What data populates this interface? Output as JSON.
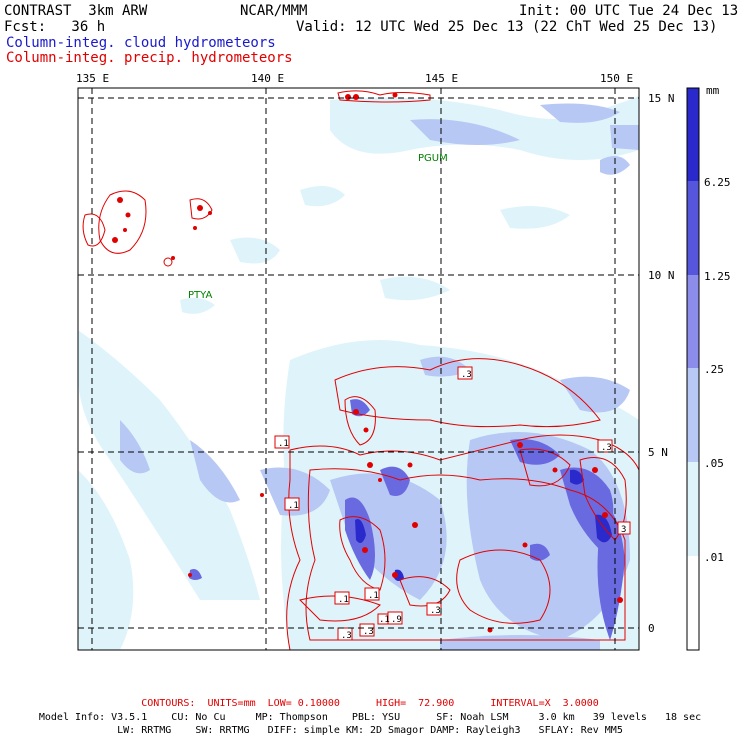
{
  "header": {
    "model": "CONTRAST  3km ARW",
    "center": "NCAR/MMM",
    "init": "Init: 00 UTC Tue 24 Dec 13",
    "fcst": "Fcst:   36 h",
    "valid": "Valid: 12 UTC Wed 25 Dec 13 (22 ChT Wed 25 Dec 13)",
    "legend_blue": "Column-integ. cloud hydrometeors",
    "legend_red": "Column-integ. precip. hydrometeors"
  },
  "map": {
    "lon_labels": [
      "135 E",
      "140 E",
      "145 E",
      "150 E"
    ],
    "lat_labels": [
      "15 N",
      "10 N",
      "5 N",
      "0"
    ],
    "stations": [
      "PGUM",
      "PTYA"
    ],
    "contour_labels": [
      ".1",
      ".1",
      ".3",
      ".1",
      ".1",
      ".9",
      ".3",
      ".3",
      ".3",
      ".3",
      "3",
      ".1"
    ]
  },
  "colorbar": {
    "units": "mm",
    "levels": [
      "6.25",
      "1.25",
      ".25",
      ".05",
      ".01"
    ],
    "colors": [
      "#ffffff",
      "#dff4fa",
      "#b8c8f4",
      "#8c8ceb",
      "#5656dc",
      "#2a2acc",
      "#0000b8"
    ]
  },
  "footer": {
    "contours": "CONTOURS:  UNITS=mm  LOW= 0.10000      HIGH=  72.900      INTERVAL=X  3.0000",
    "model_info_1": "Model Info: V3.5.1    CU: No Cu     MP: Thompson    PBL: YSU      SF: Noah LSM     3.0 km   39 levels   18 sec",
    "model_info_2": "LW: RRTMG    SW: RRTMG   DIFF: simple KM: 2D Smagor DAMP: Rayleigh3   SFLAY: Rev MM5"
  }
}
